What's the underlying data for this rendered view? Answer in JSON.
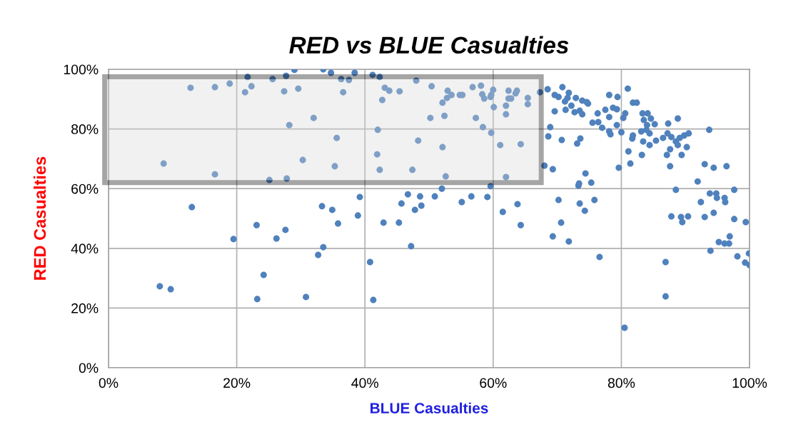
{
  "chart_data": {
    "type": "scatter",
    "title": "RED vs BLUE Casualties",
    "xlabel": "BLUE Casualties",
    "ylabel": "RED Casualties",
    "x": [
      8.0,
      9.7,
      8.6,
      13.0,
      12.8,
      16.6,
      16.6,
      18.9,
      19.5,
      22.3,
      21.7,
      21.3,
      23.1,
      23.2,
      24.2,
      25.1,
      25.6,
      26.2,
      27.6,
      27.4,
      27.7,
      27.8,
      28.2,
      29.0,
      29.6,
      30.3,
      30.8,
      32.0,
      32.7,
      33.3,
      33.5,
      33.5,
      34.9,
      34.7,
      35.3,
      35.6,
      35.8,
      36.6,
      36.3,
      37.5,
      38.4,
      38.9,
      39.2,
      40.8,
      41.3,
      41.2,
      42.3,
      42.0,
      41.9,
      42.3,
      42.7,
      42.9,
      43.1,
      43.8,
      45.3,
      45.4,
      45.7,
      46.7,
      47.2,
      47.4,
      47.8,
      48.0,
      48.3,
      48.6,
      48.8,
      50.2,
      50.4,
      50.9,
      52.0,
      52.1,
      52.1,
      52.4,
      52.6,
      52.8,
      52.9,
      53.5,
      54.8,
      55.1,
      55.2,
      56.6,
      56.8,
      57.3,
      58.1,
      58.3,
      58.4,
      58.6,
      59.1,
      59.6,
      59.6,
      59.7,
      59.7,
      60.0,
      60.1,
      61.1,
      61.5,
      62.0,
      62.0,
      62.0,
      62.4,
      62.4,
      62.8,
      63.5,
      63.7,
      63.8,
      64.3,
      64.3,
      65.4,
      65.4,
      67.3,
      68.0,
      68.5,
      68.6,
      68.9,
      69.3,
      69.3,
      69.6,
      69.6,
      70.2,
      70.2,
      70.6,
      70.7,
      70.8,
      71.2,
      71.3,
      71.6,
      71.8,
      71.8,
      72.2,
      72.7,
      72.9,
      73.1,
      73.3,
      73.4,
      73.5,
      73.5,
      73.6,
      73.9,
      73.9,
      74.3,
      74.4,
      74.6,
      74.8,
      75.3,
      75.5,
      75.8,
      76.3,
      76.4,
      76.6,
      77.0,
      77.5,
      78.1,
      78.1,
      78.1,
      78.3,
      78.7,
      79.3,
      79.3,
      79.4,
      79.6,
      80.0,
      80.3,
      80.5,
      80.6,
      81.0,
      81.1,
      81.4,
      81.7,
      81.8,
      81.8,
      82.4,
      83.1,
      83.2,
      83.3,
      83.4,
      83.5,
      83.9,
      84.0,
      84.1,
      84.4,
      84.4,
      84.6,
      85.2,
      85.4,
      86.5,
      86.9,
      86.9,
      87.1,
      87.2,
      87.3,
      87.6,
      87.6,
      87.8,
      87.8,
      88.5,
      88.5,
      88.8,
      88.8,
      89.1,
      89.3,
      89.4,
      89.5,
      89.8,
      90.2,
      90.4,
      90.5,
      91.9,
      92.4,
      93.0,
      93.0,
      93.7,
      93.8,
      93.9,
      94.4,
      94.4,
      94.8,
      94.9,
      95.2,
      96.1,
      96.1,
      96.2,
      96.4,
      96.8,
      96.9,
      97.6,
      97.6,
      98.1,
      99.3,
      99.4,
      99.9,
      100.0
    ],
    "values": [
      27.3,
      26.3,
      68.4,
      53.8,
      93.8,
      94.0,
      64.8,
      95.2,
      43.1,
      94.3,
      97.4,
      92.3,
      47.8,
      23.0,
      31.1,
      62.9,
      96.7,
      43.3,
      46.2,
      92.6,
      97.8,
      63.4,
      81.3,
      99.8,
      93.5,
      69.6,
      23.7,
      83.7,
      37.8,
      54.1,
      40.4,
      100.0,
      52.9,
      98.8,
      67.5,
      77.0,
      48.3,
      92.3,
      96.7,
      96.4,
      98.8,
      51.0,
      57.2,
      35.4,
      22.7,
      98.1,
      97.4,
      79.7,
      71.5,
      66.3,
      89.7,
      48.6,
      93.8,
      92.8,
      48.6,
      92.6,
      55.0,
      58.1,
      40.7,
      66.3,
      52.9,
      96.2,
      76.1,
      57.4,
      54.3,
      83.7,
      94.3,
      57.4,
      60.0,
      88.8,
      73.9,
      84.4,
      64.1,
      90.4,
      92.8,
      91.4,
      91.4,
      55.5,
      91.4,
      57.4,
      94.0,
      83.7,
      94.5,
      91.6,
      80.6,
      90.2,
      57.2,
      90.7,
      60.8,
      91.4,
      78.7,
      93.1,
      87.3,
      74.6,
      52.2,
      87.8,
      84.9,
      63.9,
      92.8,
      90.2,
      90.2,
      91.9,
      92.8,
      54.8,
      47.8,
      74.9,
      90.4,
      88.3,
      92.3,
      67.7,
      93.3,
      77.5,
      80.6,
      44.0,
      66.5,
      91.4,
      85.9,
      90.7,
      56.2,
      48.6,
      76.3,
      94.0,
      89.2,
      86.4,
      90.4,
      92.1,
      42.3,
      87.8,
      85.6,
      90.4,
      75.1,
      61.0,
      61.7,
      86.1,
      55.0,
      76.8,
      89.5,
      84.9,
      52.6,
      65.1,
      89.0,
      88.5,
      62.0,
      82.1,
      56.2,
      85.2,
      82.3,
      37.1,
      80.4,
      86.4,
      91.4,
      84.0,
      79.2,
      78.2,
      87.1,
      86.6,
      81.3,
      90.7,
      67.0,
      78.9,
      83.7,
      13.4,
      85.2,
      93.5,
      72.5,
      68.4,
      76.8,
      88.8,
      77.8,
      88.8,
      79.2,
      71.3,
      85.2,
      75.8,
      83.0,
      79.7,
      81.3,
      85.2,
      78.5,
      74.6,
      83.5,
      81.6,
      76.1,
      77.0,
      35.4,
      23.9,
      71.3,
      78.5,
      81.8,
      73.2,
      67.5,
      77.3,
      50.7,
      75.8,
      59.6,
      83.5,
      74.6,
      77.0,
      50.5,
      71.3,
      48.8,
      77.8,
      73.9,
      50.7,
      78.5,
      62.4,
      55.5,
      68.2,
      50.5,
      79.7,
      58.4,
      39.2,
      67.0,
      51.9,
      58.4,
      56.9,
      42.1,
      56.9,
      41.6,
      55.5,
      67.5,
      41.6,
      44.0,
      59.6,
      49.8,
      37.3,
      35.2,
      48.8,
      38.3,
      34.4
    ],
    "color": "#4f81bd",
    "marker": "circle",
    "xlim": [
      0,
      100
    ],
    "xticks": [
      {
        "value": 0,
        "label": "0%"
      },
      {
        "value": 20,
        "label": "20%"
      },
      {
        "value": 40,
        "label": "40%"
      },
      {
        "value": 60,
        "label": "60%"
      },
      {
        "value": 80,
        "label": "80%"
      },
      {
        "value": 100,
        "label": "100%"
      }
    ],
    "ylim": [
      0,
      100
    ],
    "yticks": [
      {
        "value": 0,
        "label": "0%"
      },
      {
        "value": 20,
        "label": "20%"
      },
      {
        "value": 40,
        "label": "40%"
      },
      {
        "value": 60,
        "label": "60%"
      },
      {
        "value": 80,
        "label": "80%"
      },
      {
        "value": 100,
        "label": "100%"
      }
    ],
    "grid": true
  }
}
